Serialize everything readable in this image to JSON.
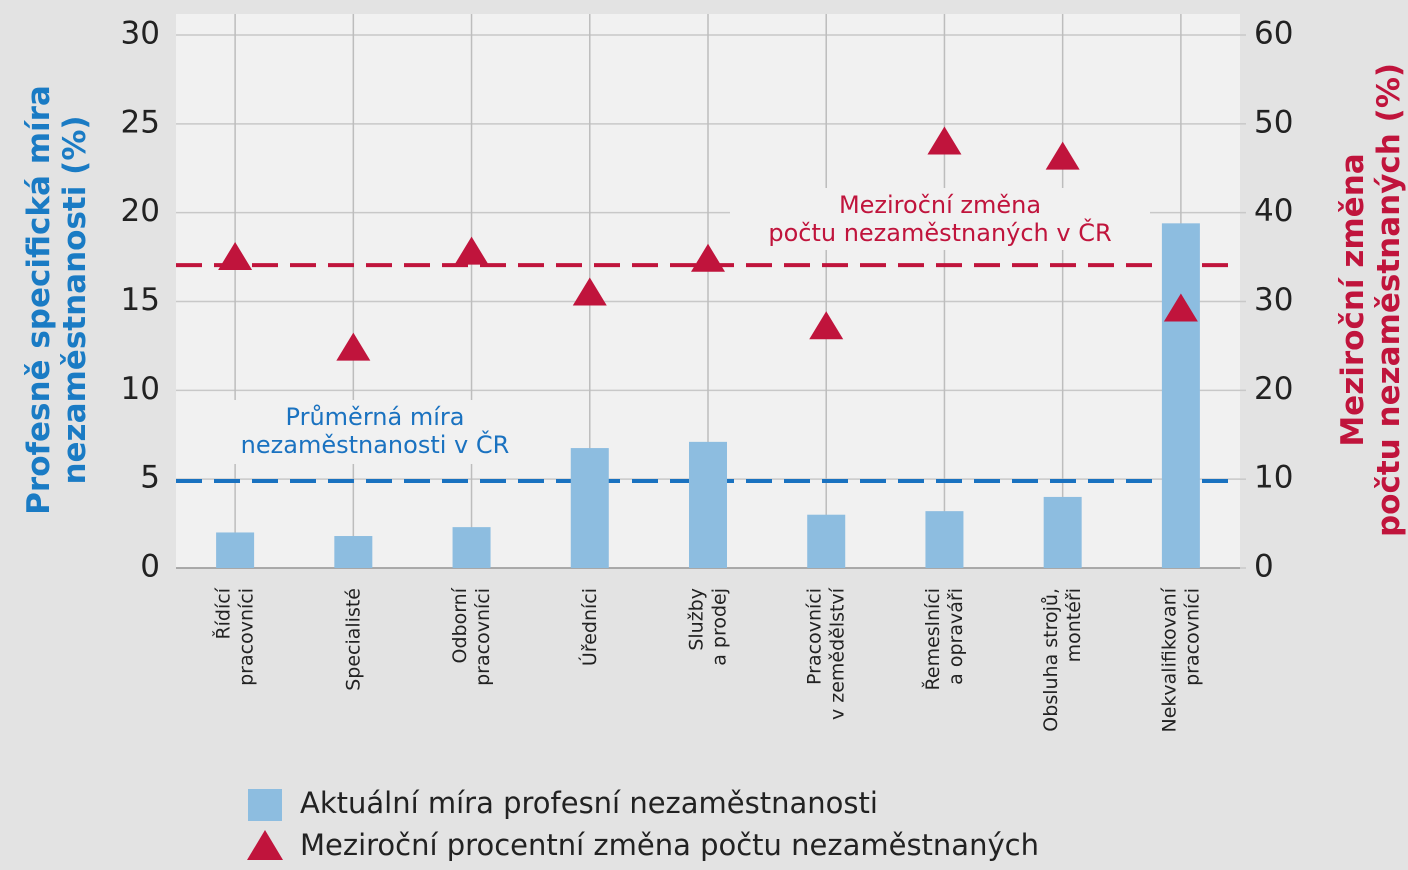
{
  "chart_data": {
    "type": "bar",
    "categories": [
      "Řídící\npracovníci",
      "Specialisté",
      "Odborní\npracovníci",
      "Úředníci",
      "Služby\na prodej",
      "Pracovníci\nv zemědělství",
      "Řemeslníci\na opraváři",
      "Obsluha strojů,\nmontéři",
      "Nekvalifikovaní\npracovníci"
    ],
    "series": [
      {
        "name": "Aktuální míra profesní nezaměstnanosti",
        "type": "bar",
        "axis": "y",
        "color": "#8dbde0",
        "values": [
          2.0,
          1.8,
          2.3,
          6.75,
          7.1,
          3.0,
          3.2,
          4.0,
          19.4
        ]
      },
      {
        "name": "Meziroční procentní změna počtu nezaměstnaných",
        "type": "scatter",
        "marker": "triangle",
        "axis": "y2",
        "color": "#c0143c",
        "values": [
          34.9,
          24.7,
          35.5,
          30.9,
          34.7,
          27.1,
          47.9,
          46.2,
          29.1
        ]
      }
    ],
    "reference_lines": [
      {
        "label": [
          "Průměrná míra",
          "nezaměstnanosti v ČR"
        ],
        "value": 4.9,
        "axis": "y",
        "color": "#1a72c0"
      },
      {
        "label": [
          "Meziroční změna",
          "počtu nezaměstnaných v ČR"
        ],
        "value": 34.1,
        "axis": "y2",
        "color": "#c0143c"
      }
    ],
    "ylabel": [
      "Profesně specifická míra",
      "nezaměstnanosti (%)"
    ],
    "y2label": [
      "Meziroční změna",
      "počtu nezaměstnaných (%)"
    ],
    "ylim": [
      0,
      30
    ],
    "yticks": [
      0,
      5,
      10,
      15,
      20,
      25,
      30
    ],
    "y2lim": [
      0,
      60
    ],
    "y2ticks": [
      0,
      10,
      20,
      30,
      40,
      50,
      60
    ],
    "ylabel_color": "#1a7bc4",
    "y2label_color": "#c0143c",
    "grid": true
  }
}
